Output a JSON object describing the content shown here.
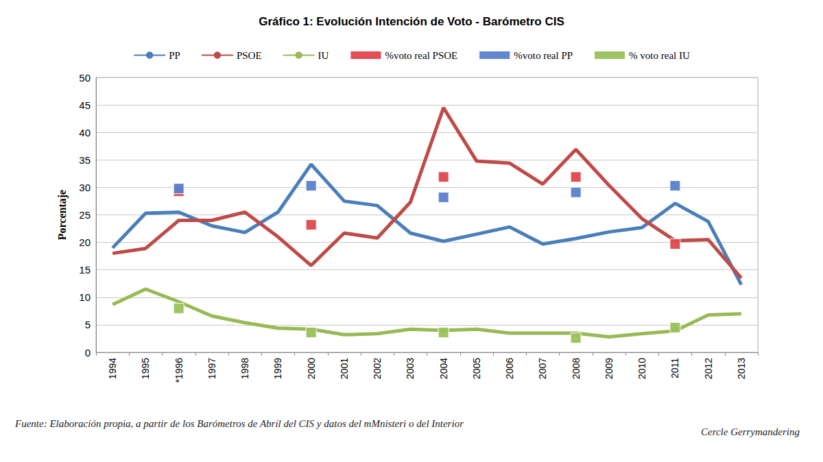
{
  "chart_data": {
    "type": "line",
    "title": "Gráfico 1: Evolución Intención de Voto - Barómetro CIS",
    "y_label": "Porcentaje",
    "annotations": {
      "source": "Fuente: Elaboración propia, a partir de los Barómetros de Abril del CIS y datos del mMnisteri o del Interior",
      "credit": "Cercle Gerrymandering"
    },
    "categories": [
      "1994",
      "1995",
      "*1996",
      "1997",
      "1998",
      "1999",
      "2000",
      "2001",
      "2002",
      "2003",
      "2004",
      "2005",
      "2006",
      "2007",
      "2008",
      "2009",
      "2010",
      "2011",
      "2012",
      "2013"
    ],
    "series": [
      {
        "name": "PP",
        "type": "line",
        "color": "#4a7ebb",
        "line_style": "solid",
        "values": [
          19.0,
          25.3,
          25.5,
          23.0,
          21.8,
          25.5,
          34.2,
          27.5,
          26.7,
          21.7,
          20.2,
          21.5,
          22.8,
          19.7,
          20.7,
          21.9,
          22.7,
          27.1,
          23.8,
          12.3
        ]
      },
      {
        "name": "PSOE",
        "type": "line",
        "color": "#be4b48",
        "line_style": "solid",
        "values": [
          18.0,
          18.9,
          24.0,
          24.0,
          25.5,
          21.0,
          15.8,
          21.7,
          20.8,
          27.3,
          44.5,
          34.8,
          34.4,
          30.6,
          36.9,
          30.4,
          24.3,
          20.3,
          20.5,
          13.5
        ]
      },
      {
        "name": "IU",
        "type": "line",
        "color": "#98b954",
        "line_style": "solid",
        "values": [
          8.7,
          11.5,
          9.2,
          6.6,
          5.4,
          4.4,
          4.2,
          3.2,
          3.4,
          4.2,
          4.0,
          4.2,
          3.5,
          3.5,
          3.5,
          2.8,
          3.4,
          3.9,
          6.8,
          7.0
        ]
      },
      {
        "name": "%voto real PSOE",
        "type": "scatter",
        "marker": "square",
        "color": "#e0474c",
        "values": [
          null,
          null,
          29.3,
          null,
          null,
          null,
          23.2,
          null,
          null,
          null,
          31.9,
          null,
          null,
          null,
          31.9,
          null,
          null,
          19.7,
          null,
          null
        ]
      },
      {
        "name": "%voto real PP",
        "type": "scatter",
        "marker": "square",
        "color": "#5b80cf",
        "values": [
          null,
          null,
          29.8,
          null,
          null,
          null,
          30.3,
          null,
          null,
          null,
          28.2,
          null,
          null,
          null,
          29.1,
          null,
          null,
          30.3,
          null,
          null
        ]
      },
      {
        "name": "% voto real IU",
        "type": "scatter",
        "marker": "square",
        "color": "#9bc158",
        "values": [
          null,
          null,
          8.0,
          null,
          null,
          null,
          3.6,
          null,
          null,
          null,
          3.6,
          null,
          null,
          null,
          2.6,
          null,
          null,
          4.5,
          null,
          null
        ]
      }
    ],
    "ylim": [
      0,
      50
    ],
    "yticks": [
      0,
      5,
      10,
      15,
      20,
      25,
      30,
      35,
      40,
      45,
      50
    ],
    "grid": true,
    "legend": "top"
  }
}
